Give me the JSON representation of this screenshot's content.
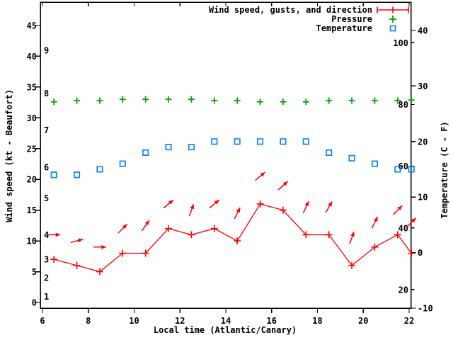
{
  "page": {
    "background": "#ffffff"
  },
  "colors": {
    "wind": "#ff0000",
    "pressure": "#00a400",
    "temperature": "#0080ff",
    "axis": "#000000"
  },
  "chart_data": {
    "type": "line",
    "title": "",
    "xlabel": "Local time (Atlantic/Canary)",
    "ylabel_left": "Wind speed (kt - Beaufort)",
    "ylabel_right": "Temperature (C - F)",
    "grid": false,
    "legend_position": "top-right-inside",
    "legend": [
      {
        "label": "Wind speed, gusts, and direction",
        "marker": "errorbar-line",
        "color": "#ff0000"
      },
      {
        "label": "Pressure",
        "marker": "plus",
        "color": "#00a400"
      },
      {
        "label": "Temperature",
        "marker": "open-square",
        "color": "#0080ff"
      }
    ],
    "x_ticks_hours": [
      6,
      8,
      10,
      12,
      14,
      16,
      18,
      20,
      22
    ],
    "y_left_ticks_kt": [
      0,
      5,
      10,
      15,
      20,
      25,
      30,
      35,
      40,
      45
    ],
    "y_right_ticks_c": [
      -10,
      0,
      10,
      20,
      30,
      40
    ],
    "beaufort_inner_labels": [
      {
        "bft": "1",
        "kt": 1
      },
      {
        "bft": "2",
        "kt": 4
      },
      {
        "bft": "3",
        "kt": 7
      },
      {
        "bft": "4",
        "kt": 11
      },
      {
        "bft": "5",
        "kt": 17
      },
      {
        "bft": "6",
        "kt": 22
      },
      {
        "bft": "7",
        "kt": 28
      },
      {
        "bft": "8",
        "kt": 34
      },
      {
        "bft": "9",
        "kt": 41
      }
    ],
    "fahrenheit_inner_labels": [
      20,
      40,
      60,
      80,
      100
    ],
    "x_range_hours": [
      5.9,
      22.17
    ],
    "y_left_range_kt": [
      -0.9,
      48.8
    ],
    "y_right_range_c": [
      -10,
      45.1
    ],
    "hours": [
      6.5,
      7.5,
      8.5,
      9.5,
      10.5,
      11.5,
      12.5,
      13.5,
      14.5,
      15.5,
      16.5,
      17.5,
      18.5,
      19.5,
      20.5,
      21.5,
      22.1
    ],
    "series": [
      {
        "name": "wind_speed_kt",
        "style": "line-with-plus-markers",
        "color": "#ff0000",
        "values": [
          7,
          6,
          5,
          8,
          8,
          12,
          11,
          12,
          10,
          16,
          15,
          11,
          11,
          6,
          9,
          11,
          8
        ]
      },
      {
        "name": "wind_gust_kt_arrow_height",
        "style": "direction-arrows",
        "color": "#ff0000",
        "values": [
          11,
          10,
          9,
          12,
          12.5,
          16,
          15,
          16,
          14.5,
          20.5,
          19,
          15.5,
          15.5,
          10.5,
          13,
          15,
          13
        ],
        "direction_deg_toward": [
          90,
          105,
          90,
          135,
          145,
          130,
          160,
          130,
          153,
          130,
          132,
          155,
          150,
          160,
          153,
          135,
          135
        ]
      },
      {
        "name": "pressure",
        "style": "plus-markers",
        "color": "#00a400",
        "scale_note": "no numeric pressure axis is shown; values recorded as positions on the left kt axis",
        "values_left_axis_units": [
          32.6,
          32.8,
          32.8,
          33,
          33,
          33,
          33,
          32.8,
          32.8,
          32.6,
          32.6,
          32.6,
          32.8,
          32.8,
          32.8,
          32.8,
          32.9
        ]
      },
      {
        "name": "temperature_c",
        "style": "open-square-markers",
        "color": "#0080ff",
        "values": [
          14,
          14,
          15,
          16,
          18,
          19,
          19,
          20,
          20,
          20,
          20,
          20,
          18,
          17,
          16,
          15,
          15
        ]
      }
    ]
  }
}
